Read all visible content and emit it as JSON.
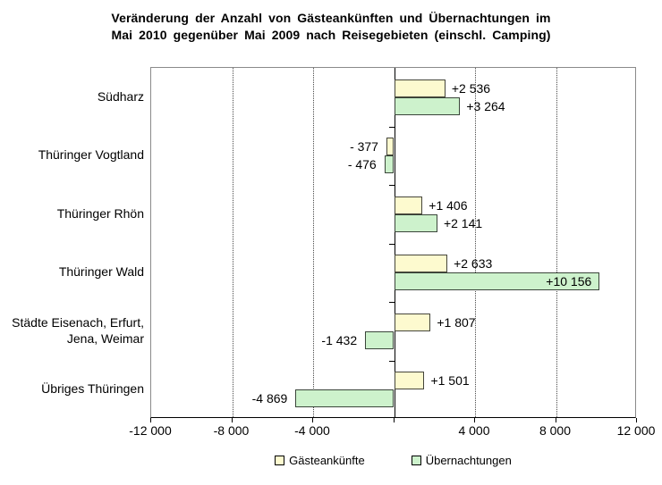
{
  "chart_data": {
    "type": "bar",
    "orientation": "horizontal",
    "title_lines": [
      "Veränderung der Anzahl von Gästeankünften und Übernachtungen im",
      "Mai 2010 gegenüber Mai 2009 nach Reisegebieten (einschl. Camping)"
    ],
    "categories": [
      {
        "lines": [
          "Südharz"
        ]
      },
      {
        "lines": [
          "Thüringer Vogtland"
        ]
      },
      {
        "lines": [
          "Thüringer Rhön"
        ]
      },
      {
        "lines": [
          "Thüringer Wald"
        ]
      },
      {
        "lines": [
          "Städte Eisenach, Erfurt,",
          "Jena, Weimar"
        ]
      },
      {
        "lines": [
          "Übriges Thüringen"
        ]
      }
    ],
    "series": [
      {
        "name": "Gästeankünfte",
        "color": "#FDFACF",
        "border_color": "#45453a",
        "values": [
          2536,
          -377,
          1406,
          2633,
          1807,
          1501
        ],
        "value_labels": [
          "+2 536",
          "- 377",
          "+1 406",
          "+2 633",
          "+1 807",
          "+1 501"
        ]
      },
      {
        "name": "Übernachtungen",
        "color": "#CDF2CC",
        "border_color": "#3a453a",
        "values": [
          3264,
          -476,
          2141,
          10156,
          -1432,
          -4869
        ],
        "value_labels": [
          "+3 264",
          "- 476",
          "+2 141",
          "+10 156",
          "-1 432",
          "-4 869"
        ]
      }
    ],
    "xlim": [
      -12000,
      12000
    ],
    "x_ticks": [
      -12000,
      -8000,
      -4000,
      0,
      4000,
      8000,
      12000
    ],
    "x_tick_labels": [
      "-12 000",
      "-8 000",
      "-4 000",
      "",
      "4 000",
      "8 000",
      "12 000"
    ],
    "legend_position": "bottom",
    "grid": "vertical-dotted",
    "background": "#ffffff"
  }
}
